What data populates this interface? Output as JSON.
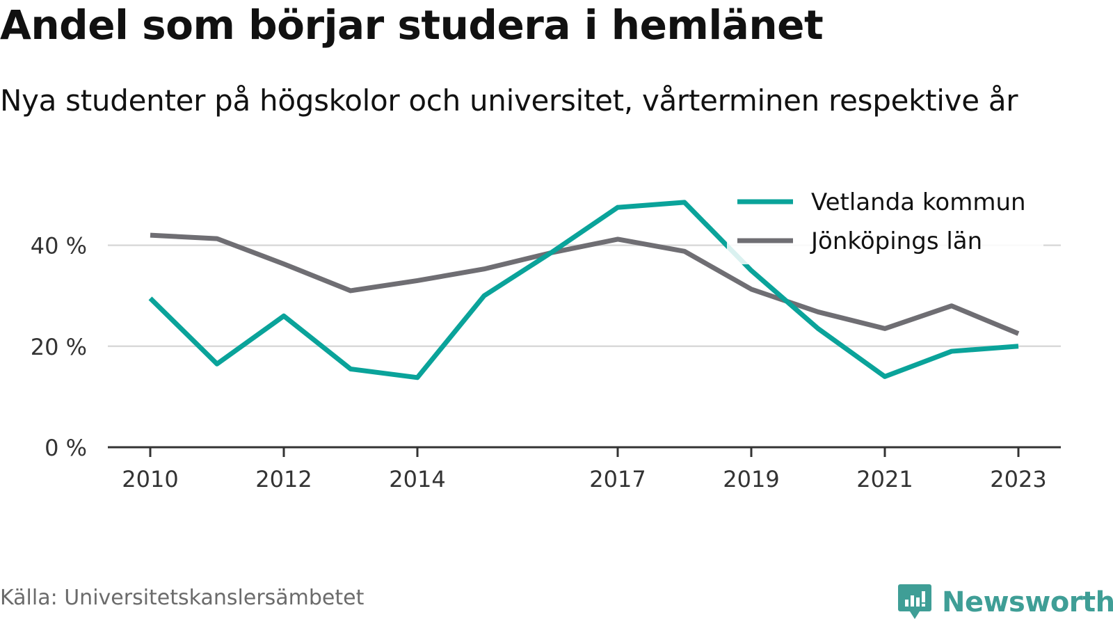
{
  "header": {
    "title": "Andel som börjar studera i hemlänet",
    "subtitle": "Nya studenter på högskolor och universitet, vårterminen respektive år"
  },
  "footer": {
    "source": "Källa: Universitetskanslersämbetet",
    "brand": "Newsworthy"
  },
  "colors": {
    "vetlanda": "#0aa39a",
    "jonkoping": "#6f6e73",
    "grid": "#d9d9d9",
    "axis": "#333333",
    "brand": "#3f9e96"
  },
  "chart_data": {
    "type": "line",
    "x": [
      2010,
      2011,
      2012,
      2013,
      2014,
      2015,
      2016,
      2017,
      2018,
      2019,
      2020,
      2021,
      2022,
      2023
    ],
    "xticks": [
      "2010",
      "2012",
      "2014",
      "2017",
      "2019",
      "2021",
      "2023"
    ],
    "yticks": [
      "0 %",
      "20 %",
      "40 %"
    ],
    "ytick_values": [
      0,
      20,
      40
    ],
    "ylim": [
      0,
      50
    ],
    "xlim": [
      2009.4,
      2023.65
    ],
    "grid": true,
    "legend_position": "top-right",
    "series": [
      {
        "name": "Vetlanda kommun",
        "color": "#0aa39a",
        "values": [
          29.5,
          16.5,
          26,
          15.5,
          13.8,
          30,
          38.5,
          47.5,
          48.5,
          35,
          23.5,
          14,
          19,
          20
        ]
      },
      {
        "name": "Jönköpings län",
        "color": "#6f6e73",
        "values": [
          42,
          41.3,
          36.3,
          31,
          33,
          35.3,
          38.5,
          41.2,
          38.8,
          31.3,
          26.8,
          23.5,
          28,
          22.5
        ]
      }
    ]
  }
}
